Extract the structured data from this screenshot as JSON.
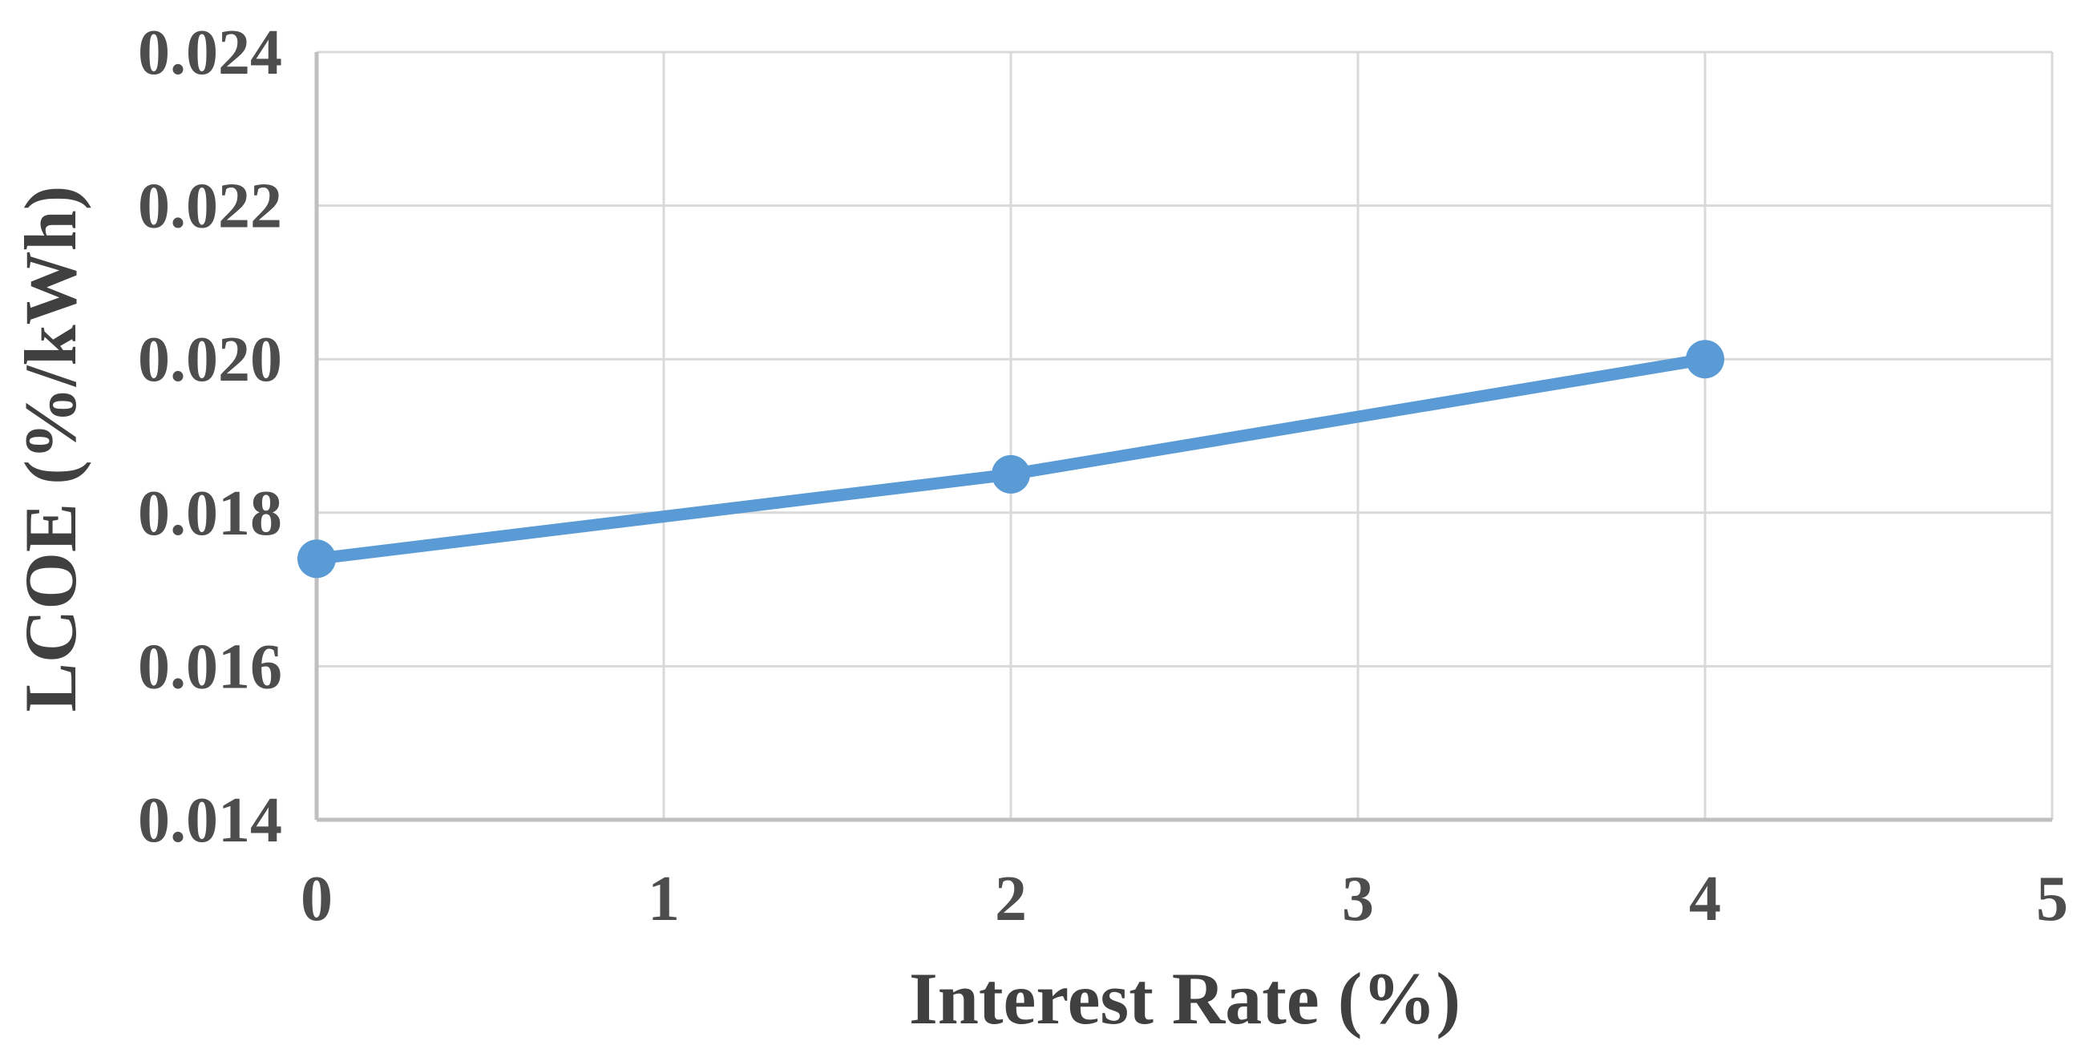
{
  "chart_data": {
    "type": "line",
    "xlabel": "Interest Rate (%)",
    "ylabel": "LCOE (%/kWh)",
    "x": [
      0,
      2,
      4
    ],
    "y": [
      0.0174,
      0.0185,
      0.02
    ],
    "xlim": [
      0,
      5
    ],
    "ylim": [
      0.014,
      0.024
    ],
    "xticks": [
      0,
      1,
      2,
      3,
      4,
      5
    ],
    "yticks": [
      0.014,
      0.016,
      0.018,
      0.02,
      0.022,
      0.024
    ],
    "xtick_labels": [
      "0",
      "1",
      "2",
      "3",
      "4",
      "5"
    ],
    "ytick_labels": [
      "0.014",
      "0.016",
      "0.018",
      "0.020",
      "0.022",
      "0.024"
    ],
    "grid": true,
    "legend": "none",
    "markers": true,
    "colors": {
      "series": "#5B9BD5",
      "grid": "#D9D9D9",
      "axis_line": "#BFBFBF",
      "tick_text": "#4D4D4D",
      "title_text": "#404040"
    }
  }
}
